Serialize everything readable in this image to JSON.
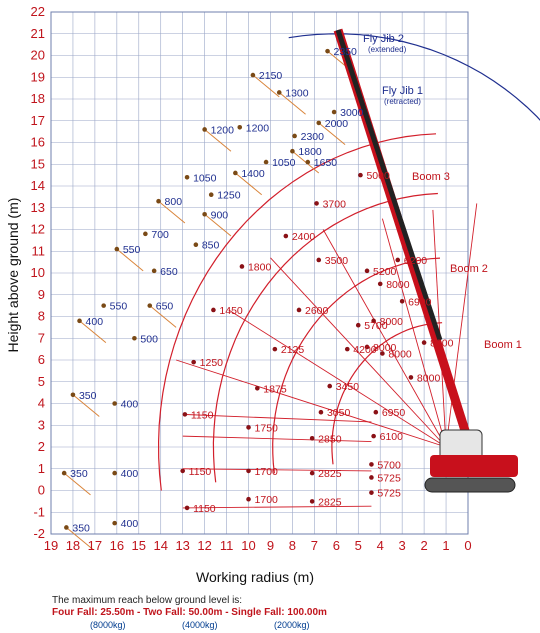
{
  "chart_data": {
    "type": "scatter",
    "xlabel": "Working radius (m)",
    "ylabel": "Height above ground (m)",
    "xlim": [
      19,
      0
    ],
    "ylim": [
      -2,
      22
    ],
    "grid": true,
    "x_ticks": [
      "19",
      "18",
      "17",
      "16",
      "15",
      "14",
      "13",
      "12",
      "11",
      "10",
      "9",
      "8",
      "7",
      "6",
      "5",
      "4",
      "3",
      "2",
      "1",
      "0"
    ],
    "y_ticks": [
      "-2",
      "-1",
      "0",
      "1",
      "2",
      "3",
      "4",
      "5",
      "6",
      "7",
      "8",
      "9",
      "10",
      "11",
      "12",
      "13",
      "14",
      "15",
      "16",
      "17",
      "18",
      "19",
      "20",
      "21",
      "22"
    ],
    "annotations": [
      "Fly Jib 2",
      "(extended)",
      "Fly Jib 1",
      "(retracted)",
      "Boom 3",
      "Boom 2",
      "Boom 1"
    ],
    "colors": {
      "boom_arcs": "#d21f2b",
      "jib_arcs": "#1f2f8f",
      "jib_lines": "#d9843a",
      "grid": "#9aa6c7"
    },
    "series": [
      {
        "group": "boom",
        "points": [
          {
            "x": 4.6,
            "y": 6.6,
            "label": "8000"
          },
          {
            "x": 4.3,
            "y": 7.8,
            "label": "8000"
          },
          {
            "x": 4.0,
            "y": 9.5,
            "label": "8000"
          },
          {
            "x": 3.9,
            "y": 6.3,
            "label": "8000"
          },
          {
            "x": 2.6,
            "y": 5.2,
            "label": "8000"
          },
          {
            "x": 2.0,
            "y": 6.8,
            "label": "8000"
          },
          {
            "x": 3.2,
            "y": 10.6,
            "label": "6200"
          },
          {
            "x": 3.0,
            "y": 8.7,
            "label": "6900"
          },
          {
            "x": 4.2,
            "y": 3.6,
            "label": "6950"
          },
          {
            "x": 4.3,
            "y": 2.5,
            "label": "6100"
          },
          {
            "x": 4.4,
            "y": 1.2,
            "label": "5700"
          },
          {
            "x": 4.4,
            "y": 0.6,
            "label": "5725"
          },
          {
            "x": 4.4,
            "y": -0.1,
            "label": "5725"
          },
          {
            "x": 4.6,
            "y": 10.1,
            "label": "5200"
          },
          {
            "x": 4.9,
            "y": 14.5,
            "label": "5000"
          },
          {
            "x": 5.0,
            "y": 7.6,
            "label": "5700"
          },
          {
            "x": 5.5,
            "y": 6.5,
            "label": "4200"
          },
          {
            "x": 6.3,
            "y": 4.8,
            "label": "3450"
          },
          {
            "x": 6.7,
            "y": 3.6,
            "label": "3050"
          },
          {
            "x": 7.1,
            "y": 2.4,
            "label": "2850"
          },
          {
            "x": 7.1,
            "y": 0.8,
            "label": "2825"
          },
          {
            "x": 7.1,
            "y": -0.5,
            "label": "2825"
          },
          {
            "x": 6.9,
            "y": 13.2,
            "label": "3700"
          },
          {
            "x": 6.8,
            "y": 10.6,
            "label": "3500"
          },
          {
            "x": 8.3,
            "y": 11.7,
            "label": "2400"
          },
          {
            "x": 7.7,
            "y": 8.3,
            "label": "2600"
          },
          {
            "x": 8.8,
            "y": 6.5,
            "label": "2125"
          },
          {
            "x": 9.6,
            "y": 4.7,
            "label": "1875"
          },
          {
            "x": 10.0,
            "y": 2.9,
            "label": "1750"
          },
          {
            "x": 10.0,
            "y": 0.9,
            "label": "1700"
          },
          {
            "x": 10.0,
            "y": -0.4,
            "label": "1700"
          },
          {
            "x": 10.3,
            "y": 10.3,
            "label": "1800"
          },
          {
            "x": 11.6,
            "y": 8.3,
            "label": "1450"
          },
          {
            "x": 12.5,
            "y": 5.9,
            "label": "1250"
          },
          {
            "x": 12.9,
            "y": 3.5,
            "label": "1150"
          },
          {
            "x": 13.0,
            "y": 0.9,
            "label": "1150"
          },
          {
            "x": 12.8,
            "y": -0.8,
            "label": "1150"
          }
        ]
      },
      {
        "group": "jib",
        "points": [
          {
            "x": 6.4,
            "y": 20.2,
            "label": "2350"
          },
          {
            "x": 6.1,
            "y": 17.4,
            "label": "3000"
          },
          {
            "x": 6.8,
            "y": 16.9,
            "label": "2000"
          },
          {
            "x": 7.9,
            "y": 16.3,
            "label": "2300"
          },
          {
            "x": 8.0,
            "y": 15.6,
            "label": "1800"
          },
          {
            "x": 7.3,
            "y": 15.1,
            "label": "1650"
          },
          {
            "x": 8.6,
            "y": 18.3,
            "label": "1300"
          },
          {
            "x": 9.2,
            "y": 15.1,
            "label": "1050"
          },
          {
            "x": 9.8,
            "y": 19.1,
            "label": "2150"
          },
          {
            "x": 10.4,
            "y": 16.7,
            "label": "1200"
          },
          {
            "x": 10.6,
            "y": 14.6,
            "label": "1400"
          },
          {
            "x": 11.7,
            "y": 13.6,
            "label": "1250"
          },
          {
            "x": 12.0,
            "y": 16.6,
            "label": "1200"
          },
          {
            "x": 12.8,
            "y": 14.4,
            "label": "1050"
          },
          {
            "x": 12.0,
            "y": 12.7,
            "label": "900"
          },
          {
            "x": 12.4,
            "y": 11.3,
            "label": "850"
          },
          {
            "x": 14.1,
            "y": 13.3,
            "label": "800"
          },
          {
            "x": 14.7,
            "y": 11.8,
            "label": "700"
          },
          {
            "x": 16.0,
            "y": 11.1,
            "label": "550"
          },
          {
            "x": 14.3,
            "y": 10.1,
            "label": "650"
          },
          {
            "x": 14.5,
            "y": 8.5,
            "label": "650"
          },
          {
            "x": 16.6,
            "y": 8.5,
            "label": "550"
          },
          {
            "x": 17.7,
            "y": 7.8,
            "label": "400"
          },
          {
            "x": 15.2,
            "y": 7.0,
            "label": "500"
          },
          {
            "x": 18.0,
            "y": 4.4,
            "label": "350"
          },
          {
            "x": 16.1,
            "y": 4.0,
            "label": "400"
          },
          {
            "x": 18.4,
            "y": 0.8,
            "label": "350"
          },
          {
            "x": 16.1,
            "y": 0.8,
            "label": "400"
          },
          {
            "x": 18.3,
            "y": -1.7,
            "label": "350"
          },
          {
            "x": 16.1,
            "y": -1.5,
            "label": "400"
          }
        ]
      }
    ]
  },
  "footer": {
    "line1": "The maximum reach below ground level is:",
    "line2": "Four Fall: 25.50m - Two Fall: 50.00m - Single Fall: 100.00m",
    "line3_a": "(8000kg)",
    "line3_b": "(4000kg)",
    "line3_c": "(2000kg)"
  }
}
